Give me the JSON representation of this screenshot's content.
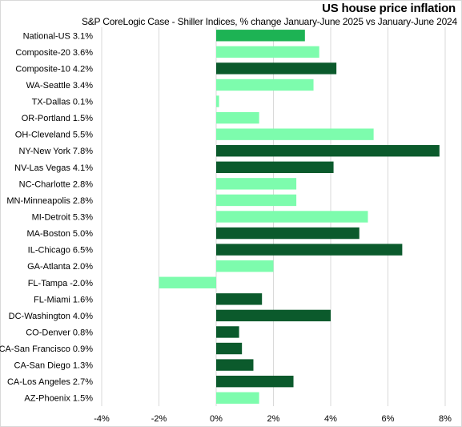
{
  "chart_data": {
    "type": "bar",
    "orientation": "horizontal",
    "title": "US house price inflation",
    "subtitle": "S&P CoreLogic Case - Shiller Indices, % change January-June 2025 vs January-June 2024",
    "xlabel": "",
    "ylabel": "",
    "xlim": [
      -4,
      8
    ],
    "xticks": [
      -4,
      -2,
      0,
      2,
      4,
      6,
      8
    ],
    "xtick_labels": [
      "-4%",
      "-2%",
      "0%",
      "2%",
      "4%",
      "6%",
      "8%"
    ],
    "grid": true,
    "categories": [
      "National-US 3.1%",
      "Composite-20 3.6%",
      "Composite-10 4.2%",
      "WA-Seattle 3.4%",
      "TX-Dallas 0.1%",
      "OR-Portland 1.5%",
      "OH-Cleveland 5.5%",
      "NY-New York 7.8%",
      "NV-Las Vegas 4.1%",
      "NC-Charlotte 2.8%",
      "MN-Minneapolis 2.8%",
      "MI-Detroit 5.3%",
      "MA-Boston 5.0%",
      "IL-Chicago 6.5%",
      "GA-Atlanta 2.0%",
      "FL-Tampa -2.0%",
      "FL-Miami 1.6%",
      "DC-Washington 4.0%",
      "CO-Denver 0.8%",
      "CA-San Francisco 0.9%",
      "CA-San Diego 1.3%",
      "CA-Los Angeles 2.7%",
      "AZ-Phoenix 1.5%"
    ],
    "values": [
      3.1,
      3.6,
      4.2,
      3.4,
      0.1,
      1.5,
      5.5,
      7.8,
      4.1,
      2.8,
      2.8,
      5.3,
      5.0,
      6.5,
      2.0,
      -2.0,
      1.6,
      4.0,
      0.8,
      0.9,
      1.3,
      2.7,
      1.5
    ],
    "bar_colors": [
      "#1db354",
      "#7dfcad",
      "#0b5a2c",
      "#7dfcad",
      "#7dfcad",
      "#7dfcad",
      "#7dfcad",
      "#0b5a2c",
      "#0b5a2c",
      "#7dfcad",
      "#7dfcad",
      "#7dfcad",
      "#0b5a2c",
      "#0b5a2c",
      "#7dfcad",
      "#7dfcad",
      "#0b5a2c",
      "#0b5a2c",
      "#0b5a2c",
      "#0b5a2c",
      "#0b5a2c",
      "#0b5a2c",
      "#7dfcad"
    ],
    "gridline_color": "#d9d9d9"
  }
}
